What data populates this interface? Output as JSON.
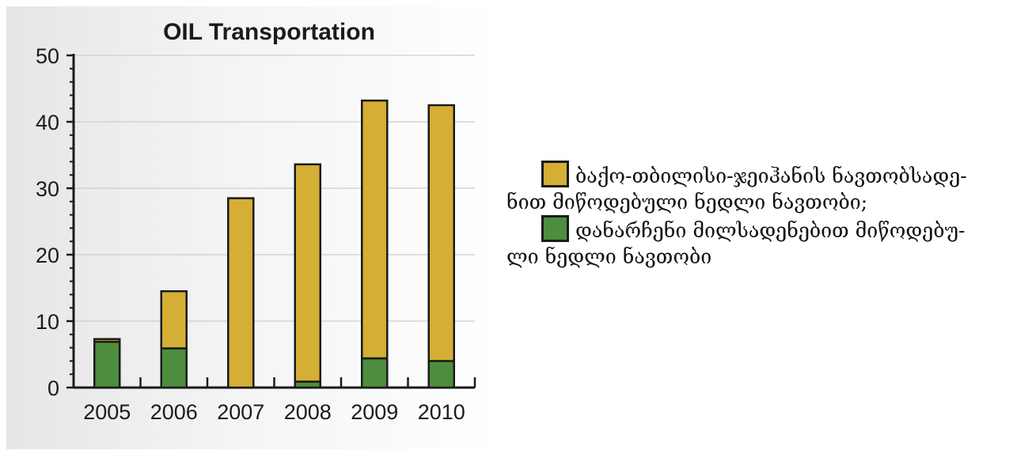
{
  "chart_data": {
    "type": "bar",
    "stacked": true,
    "title": "OIL Transportation",
    "xlabel": "",
    "ylabel": "",
    "categories": [
      "2005",
      "2006",
      "2007",
      "2008",
      "2009",
      "2010"
    ],
    "series": [
      {
        "name": "დანარჩენი მილსადენებით მიწოდებული ნედლი ნავთობი",
        "color": "#4e8d3e",
        "values": [
          6.9,
          5.9,
          0,
          0.9,
          4.4,
          4.0
        ]
      },
      {
        "name": "ბაქო-თბილისი-ჯეიჰანის ნავთობსადენით მიწოდებული ნედლი ნავთობი;",
        "color": "#d4ae35",
        "values": [
          0.4,
          8.6,
          28.5,
          32.7,
          38.8,
          38.5
        ]
      }
    ],
    "ylim": [
      0,
      50
    ],
    "yticks": [
      0,
      10,
      20,
      30,
      40,
      50
    ],
    "grid": true,
    "legend_position": "right"
  },
  "legend": [
    {
      "swatch_color": "#d4ae35",
      "line1": "ბაქო-თბილისი-ჯეიჰანის ნავთობსადე-",
      "line2": "ნით მიწოდებული ნედლი ნავთობი;"
    },
    {
      "swatch_color": "#4e8d3e",
      "line1": "დანარჩენი მილსადენებით მიწოდებუ-",
      "line2": "ლი ნედლი ნავთობი"
    }
  ]
}
